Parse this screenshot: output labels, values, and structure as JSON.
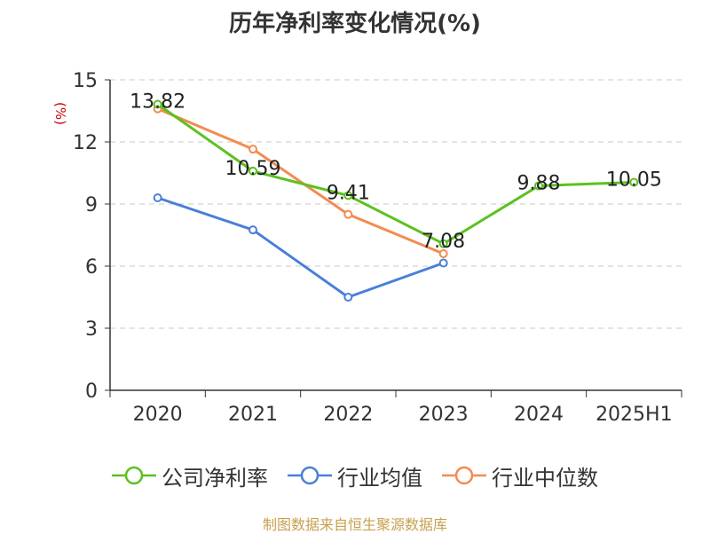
{
  "chart_data": {
    "type": "line",
    "title": "历年净利率变化情况(%)",
    "ylabel": "(%)",
    "xlabel": "",
    "categories": [
      "2020",
      "2021",
      "2022",
      "2023",
      "2024",
      "2025H1"
    ],
    "ylim": [
      0,
      15
    ],
    "yticks": [
      0,
      3,
      6,
      9,
      12,
      15
    ],
    "grid": true,
    "legend": "bottom",
    "series": [
      {
        "name": "公司净利率",
        "color": "#5cc11f",
        "values": [
          13.82,
          10.59,
          9.41,
          7.08,
          9.88,
          10.05
        ],
        "labels": [
          "13.82",
          "10.59",
          "9.41",
          "7.08",
          "9.88",
          "10.05"
        ]
      },
      {
        "name": "行业均值",
        "color": "#4a7fd9",
        "values": [
          9.3,
          7.75,
          4.5,
          6.15,
          null,
          null
        ]
      },
      {
        "name": "行业中位数",
        "color": "#f28c50",
        "values": [
          13.6,
          11.65,
          8.5,
          6.6,
          null,
          null
        ]
      }
    ]
  },
  "source": "制图数据来自恒生聚源数据库"
}
